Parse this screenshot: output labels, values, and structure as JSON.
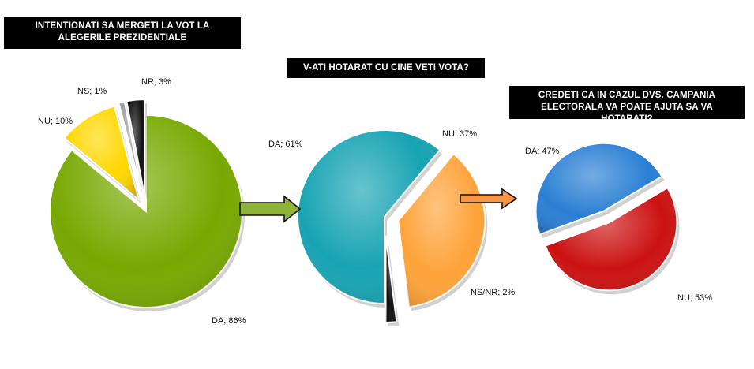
{
  "chart_data": [
    {
      "type": "pie",
      "title": "INTENTIONATI SA MERGETI LA VOT LA ALEGERILE PREZIDENTIALE",
      "slices": [
        {
          "label": "DA; 86%",
          "value": 86,
          "color": "#77a800"
        },
        {
          "label": "NU; 10%",
          "value": 10,
          "color": "#ffd700"
        },
        {
          "label": "NS; 1%",
          "value": 1,
          "color": "#9aa0a4"
        },
        {
          "label": "NR; 3%",
          "value": 3,
          "color": "#111111"
        }
      ]
    },
    {
      "type": "pie",
      "title": "V-ATI HOTARAT CU CINE VETI VOTA?",
      "slices": [
        {
          "label": "DA; 61%",
          "value": 61,
          "color": "#17a3b3"
        },
        {
          "label": "NU; 37%",
          "value": 37,
          "color": "#ffa33a"
        },
        {
          "label": "NS/NR; 2%",
          "value": 2,
          "color": "#111111"
        }
      ]
    },
    {
      "type": "pie",
      "title": "CREDETI CA IN CAZUL DVS. CAMPANIA ELECTORALA VA POATE AJUTA SA VA HOTARATI?",
      "slices": [
        {
          "label": "DA; 47%",
          "value": 47,
          "color": "#2a7fd4"
        },
        {
          "label": "NU; 53%",
          "value": 53,
          "color": "#cc1111"
        }
      ]
    }
  ],
  "arrows": [
    {
      "color": "#8fb339"
    },
    {
      "color": "#f79646"
    }
  ]
}
